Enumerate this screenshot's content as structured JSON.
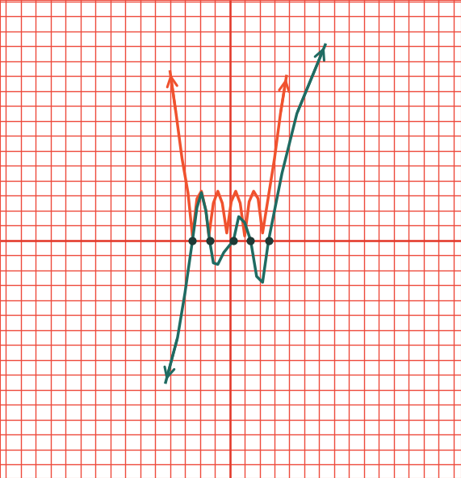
{
  "chart_data": {
    "type": "line",
    "xlim": [
      -15.4,
      15.5
    ],
    "ylim": [
      -15.9,
      16.1
    ],
    "xticks": [
      -15,
      -14,
      -13,
      -12,
      -11,
      -10,
      -9,
      -8,
      -7,
      -6,
      -5,
      -4,
      -3,
      -2,
      -1,
      0,
      1,
      2,
      3,
      4,
      5,
      6,
      7,
      8,
      9,
      10,
      11,
      12,
      13,
      14,
      15
    ],
    "yticks": [
      -15,
      -14,
      -13,
      -12,
      -11,
      -10,
      -9,
      -8,
      -7,
      -6,
      -5,
      -4,
      -3,
      -2,
      -1,
      0,
      1,
      2,
      3,
      4,
      5,
      6,
      7,
      8,
      9,
      10,
      11,
      12,
      13,
      14,
      15,
      16
    ],
    "grid": true,
    "tick_labels": false,
    "series": [
      {
        "type": "line",
        "color": "#f0522e",
        "line_style": "solid",
        "x": [
          -4.0,
          -3.6,
          -3.2,
          -2.8,
          -2.5,
          -2.2,
          -1.9,
          -1.6,
          -1.4,
          -1.1,
          -0.8,
          -0.5,
          -0.2,
          0.1,
          0.4,
          0.7,
          1.0,
          1.3,
          1.6,
          1.9,
          2.2,
          2.6,
          3.0,
          3.4,
          3.8
        ],
        "values": [
          11.3,
          8.5,
          5.5,
          3.2,
          0.3,
          2.8,
          3.3,
          2.0,
          0.3,
          2.5,
          3.3,
          2.5,
          0.5,
          2.6,
          3.3,
          2.5,
          0.3,
          2.6,
          3.3,
          2.8,
          0.5,
          3.0,
          5.5,
          8.5,
          11.0
        ]
      },
      {
        "type": "line",
        "color": "#1f6b62",
        "line_style": "solid",
        "x": [
          -4.3,
          -3.5,
          -3.0,
          -2.5,
          -2.2,
          -1.9,
          -1.6,
          -1.35,
          -1.1,
          -0.8,
          -0.4,
          0.25,
          0.6,
          1.0,
          1.4,
          1.8,
          2.2,
          2.6,
          3.5,
          4.5,
          6.4
        ],
        "values": [
          -9.5,
          -6.5,
          -3.5,
          0,
          2.2,
          3.2,
          2.0,
          0,
          -1.5,
          -1.6,
          -0.8,
          0,
          1.6,
          1.2,
          0,
          -2.4,
          -2.8,
          0,
          4.5,
          8.5,
          13.1
        ]
      },
      {
        "type": "scatter",
        "color": "#1e3a36",
        "marker": "o",
        "x": [
          -2.5,
          -1.35,
          0.25,
          1.4,
          2.6
        ],
        "values": [
          0,
          0,
          0,
          0,
          0
        ]
      }
    ]
  }
}
